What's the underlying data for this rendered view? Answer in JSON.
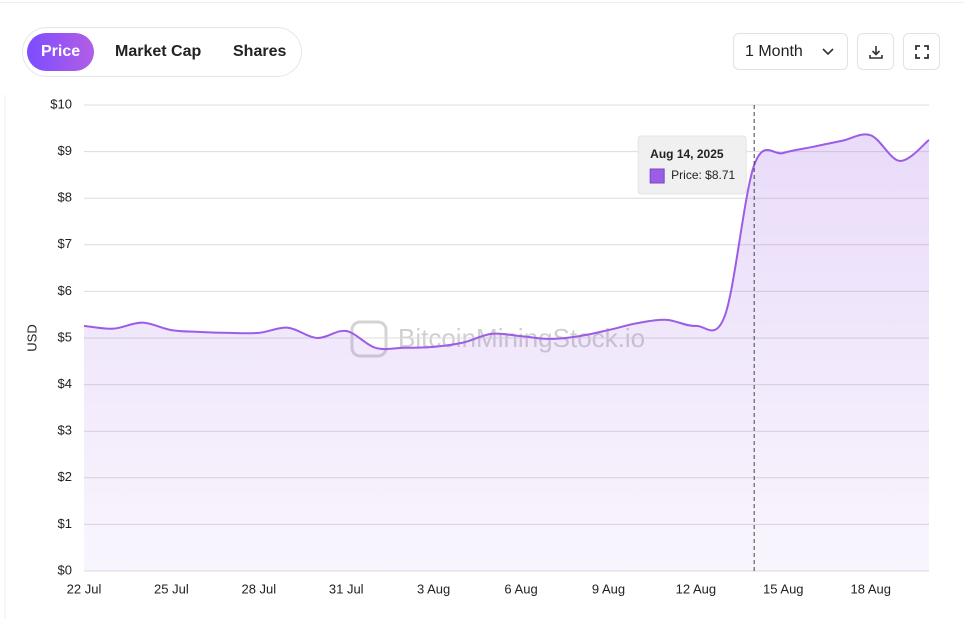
{
  "controls": {
    "tabs": [
      "Price",
      "Market Cap",
      "Shares"
    ],
    "active_tab": "Price",
    "range": "1 Month"
  },
  "chart_data": {
    "type": "area",
    "watermark": "BitcoinMiningStock.io",
    "y_label": "USD",
    "categories": [
      "22 Jul",
      null,
      null,
      "25 Jul",
      null,
      null,
      "28 Jul",
      null,
      null,
      "31 Jul",
      null,
      null,
      "3 Aug",
      null,
      null,
      "6 Aug",
      null,
      null,
      "9 Aug",
      null,
      null,
      "12 Aug",
      null,
      null,
      "15 Aug",
      null,
      null,
      "18 Aug",
      null,
      null
    ],
    "series": [
      {
        "name": "Price",
        "color": "#9b5de5",
        "values": [
          5.26,
          5.2,
          5.33,
          5.17,
          5.13,
          5.11,
          5.11,
          5.22,
          5.0,
          5.15,
          4.79,
          4.79,
          4.81,
          4.9,
          5.09,
          5.04,
          4.98,
          5.04,
          5.17,
          5.32,
          5.39,
          5.26,
          5.49,
          8.71,
          8.97,
          9.1,
          9.23,
          9.35,
          8.8,
          9.25
        ]
      }
    ],
    "ylim": [
      0,
      10
    ],
    "yticks": [
      {
        "value": 0,
        "label": "$0"
      },
      {
        "value": 1,
        "label": "$1"
      },
      {
        "value": 2,
        "label": "$2"
      },
      {
        "value": 3,
        "label": "$3"
      },
      {
        "value": 4,
        "label": "$4"
      },
      {
        "value": 5,
        "label": "$5"
      },
      {
        "value": 6,
        "label": "$6"
      },
      {
        "value": 7,
        "label": "$7"
      },
      {
        "value": 8,
        "label": "$8"
      },
      {
        "value": 9,
        "label": "$9"
      },
      {
        "value": 10,
        "label": "$10"
      }
    ],
    "grid": true,
    "tooltip": {
      "date": "Aug 14, 2025",
      "value": 8.71,
      "label": "Price: $8.71"
    }
  }
}
